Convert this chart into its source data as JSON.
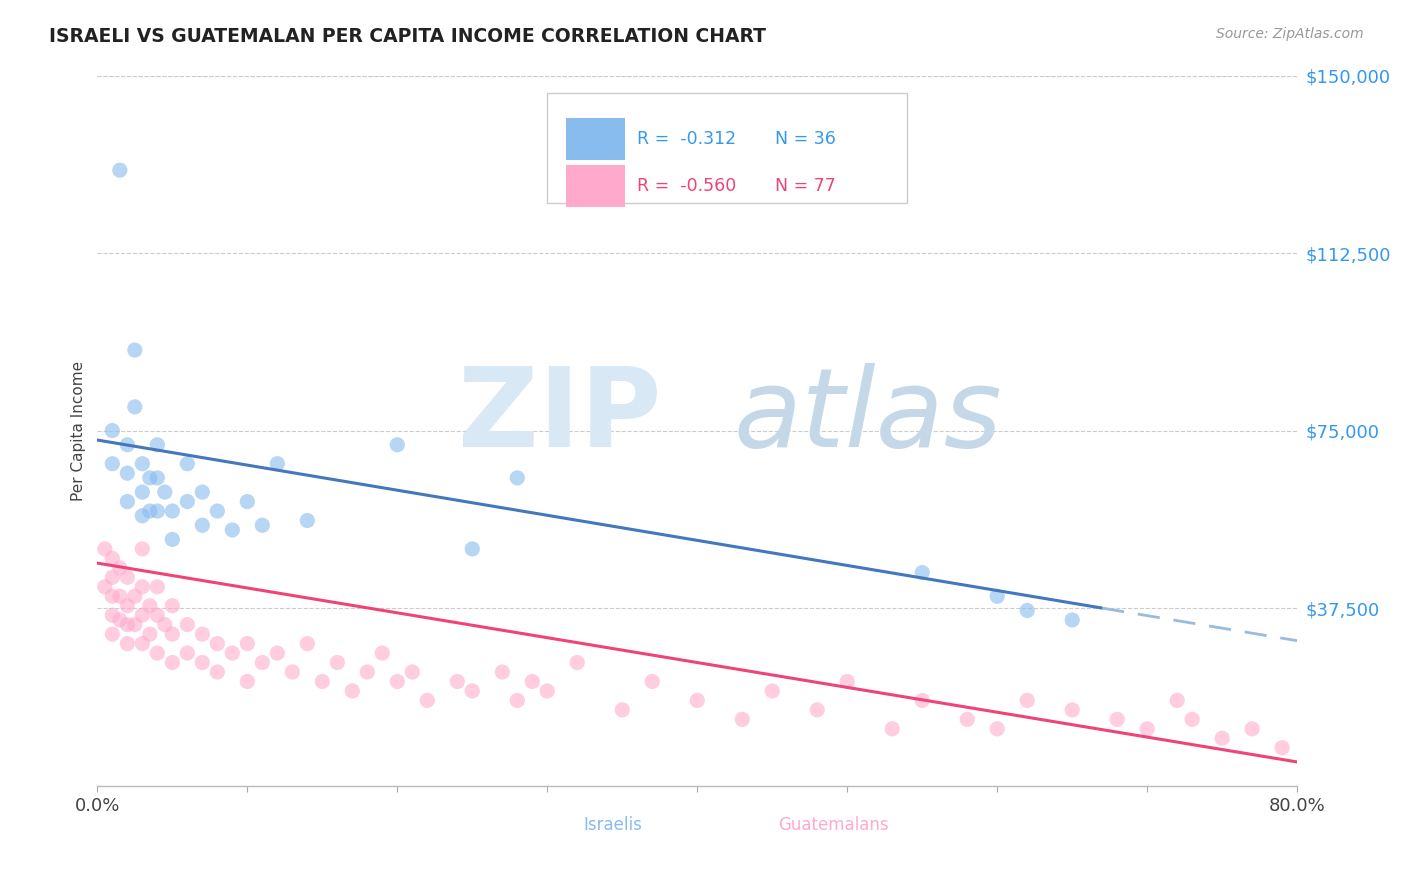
{
  "title": "ISRAELI VS GUATEMALAN PER CAPITA INCOME CORRELATION CHART",
  "source_text": "Source: ZipAtlas.com",
  "ylabel": "Per Capita Income",
  "xlim": [
    0.0,
    0.8
  ],
  "ylim": [
    0,
    150000
  ],
  "yticks": [
    0,
    37500,
    75000,
    112500,
    150000
  ],
  "ytick_labels": [
    "",
    "$37,500",
    "$75,000",
    "$112,500",
    "$150,000"
  ],
  "xticks": [
    0.0,
    0.1,
    0.2,
    0.3,
    0.4,
    0.5,
    0.6,
    0.7,
    0.8
  ],
  "xtick_labels": [
    "0.0%",
    "",
    "",
    "",
    "",
    "",
    "",
    "",
    "80.0%"
  ],
  "israel_color": "#88BBEE",
  "guatemalan_color": "#FFAACC",
  "israel_line_color": "#4477BB",
  "guatemalan_line_color": "#EE4477",
  "trendline_extend_color": "#99BBDD",
  "background_color": "#FFFFFF",
  "legend_R1": "R =  -0.312",
  "legend_N1": "N = 36",
  "legend_R2": "R =  -0.560",
  "legend_N2": "N = 77",
  "legend_label1": "Israelis",
  "legend_label2": "Guatemalans",
  "israel_scatter_x": [
    0.01,
    0.01,
    0.015,
    0.02,
    0.02,
    0.02,
    0.025,
    0.025,
    0.03,
    0.03,
    0.03,
    0.035,
    0.035,
    0.04,
    0.04,
    0.04,
    0.045,
    0.05,
    0.05,
    0.06,
    0.06,
    0.07,
    0.07,
    0.08,
    0.09,
    0.1,
    0.11,
    0.12,
    0.14,
    0.2,
    0.25,
    0.28,
    0.55,
    0.6,
    0.62,
    0.65
  ],
  "israel_scatter_y": [
    75000,
    68000,
    130000,
    72000,
    66000,
    60000,
    80000,
    92000,
    68000,
    62000,
    57000,
    65000,
    58000,
    72000,
    65000,
    58000,
    62000,
    58000,
    52000,
    68000,
    60000,
    62000,
    55000,
    58000,
    54000,
    60000,
    55000,
    68000,
    56000,
    72000,
    50000,
    65000,
    45000,
    40000,
    37000,
    35000
  ],
  "guatemalan_scatter_x": [
    0.005,
    0.005,
    0.01,
    0.01,
    0.01,
    0.01,
    0.01,
    0.015,
    0.015,
    0.015,
    0.02,
    0.02,
    0.02,
    0.02,
    0.025,
    0.025,
    0.03,
    0.03,
    0.03,
    0.03,
    0.035,
    0.035,
    0.04,
    0.04,
    0.04,
    0.045,
    0.05,
    0.05,
    0.05,
    0.06,
    0.06,
    0.07,
    0.07,
    0.08,
    0.08,
    0.09,
    0.1,
    0.1,
    0.11,
    0.12,
    0.13,
    0.14,
    0.15,
    0.16,
    0.17,
    0.18,
    0.19,
    0.2,
    0.21,
    0.22,
    0.24,
    0.25,
    0.27,
    0.28,
    0.29,
    0.3,
    0.32,
    0.35,
    0.37,
    0.4,
    0.43,
    0.45,
    0.48,
    0.5,
    0.53,
    0.55,
    0.58,
    0.6,
    0.62,
    0.65,
    0.68,
    0.7,
    0.72,
    0.73,
    0.75,
    0.77,
    0.79
  ],
  "guatemalan_scatter_y": [
    50000,
    42000,
    48000,
    44000,
    40000,
    36000,
    32000,
    46000,
    40000,
    35000,
    44000,
    38000,
    34000,
    30000,
    40000,
    34000,
    50000,
    42000,
    36000,
    30000,
    38000,
    32000,
    42000,
    36000,
    28000,
    34000,
    38000,
    32000,
    26000,
    34000,
    28000,
    32000,
    26000,
    30000,
    24000,
    28000,
    30000,
    22000,
    26000,
    28000,
    24000,
    30000,
    22000,
    26000,
    20000,
    24000,
    28000,
    22000,
    24000,
    18000,
    22000,
    20000,
    24000,
    18000,
    22000,
    20000,
    26000,
    16000,
    22000,
    18000,
    14000,
    20000,
    16000,
    22000,
    12000,
    18000,
    14000,
    12000,
    18000,
    16000,
    14000,
    12000,
    18000,
    14000,
    10000,
    12000,
    8000
  ],
  "israel_trend_x0": 0.0,
  "israel_trend_y0": 73000,
  "israel_trend_x1": 0.67,
  "israel_trend_y1": 37500,
  "israel_trend_dash_x0": 0.67,
  "israel_trend_dash_x1": 0.8,
  "guatemalan_trend_x0": 0.0,
  "guatemalan_trend_y0": 47000,
  "guatemalan_trend_x1": 0.8,
  "guatemalan_trend_y1": 5000
}
